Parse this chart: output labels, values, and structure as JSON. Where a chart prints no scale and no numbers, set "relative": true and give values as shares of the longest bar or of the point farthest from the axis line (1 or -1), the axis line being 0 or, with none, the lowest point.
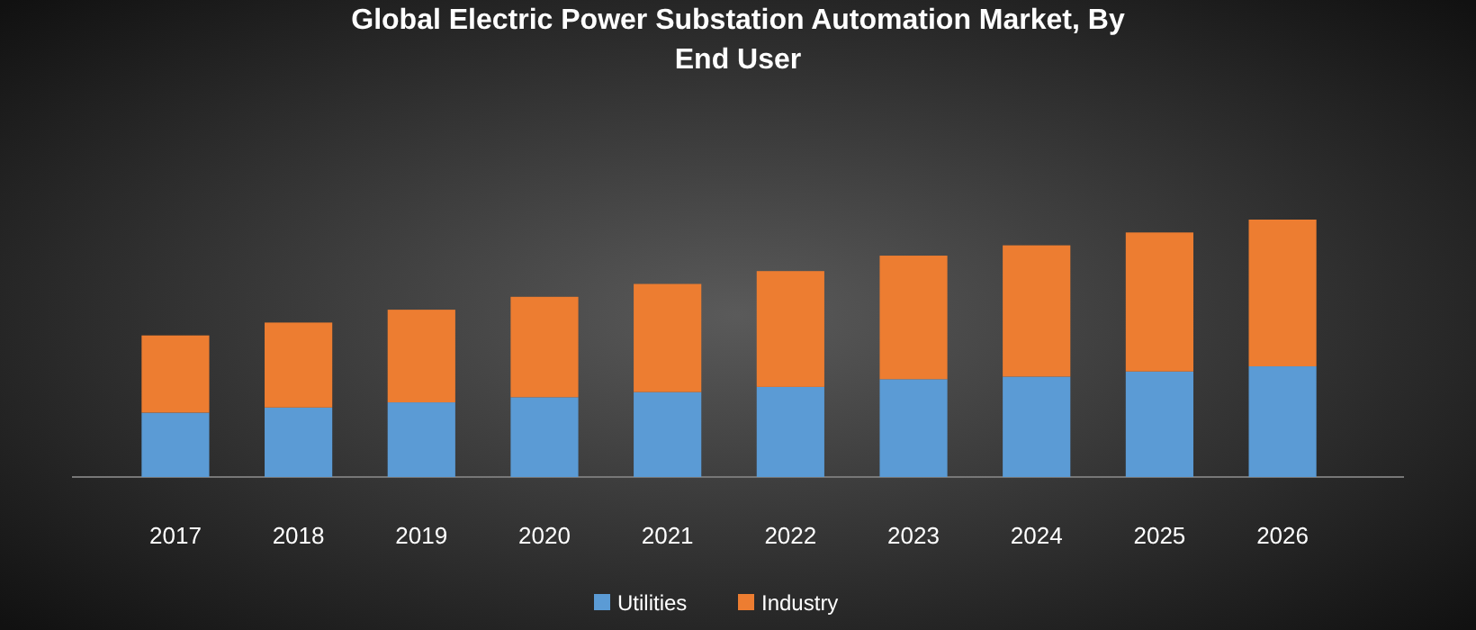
{
  "chart_data": {
    "type": "bar",
    "title": "Global Electric Power Substation Automation Market, By End User",
    "categories": [
      "2017",
      "2018",
      "2019",
      "2020",
      "2021",
      "2022",
      "2023",
      "2024",
      "2025",
      "2026"
    ],
    "stacked": true,
    "relative": true,
    "legend": "bottom",
    "series": [
      {
        "name": "Utilities",
        "color": "#5b9bd5",
        "values": [
          0.25,
          0.27,
          0.29,
          0.31,
          0.33,
          0.35,
          0.38,
          0.39,
          0.41,
          0.43
        ]
      },
      {
        "name": "Industry",
        "color": "#ed7d31",
        "values": [
          0.3,
          0.33,
          0.36,
          0.39,
          0.42,
          0.45,
          0.48,
          0.51,
          0.54,
          0.57
        ]
      }
    ]
  }
}
